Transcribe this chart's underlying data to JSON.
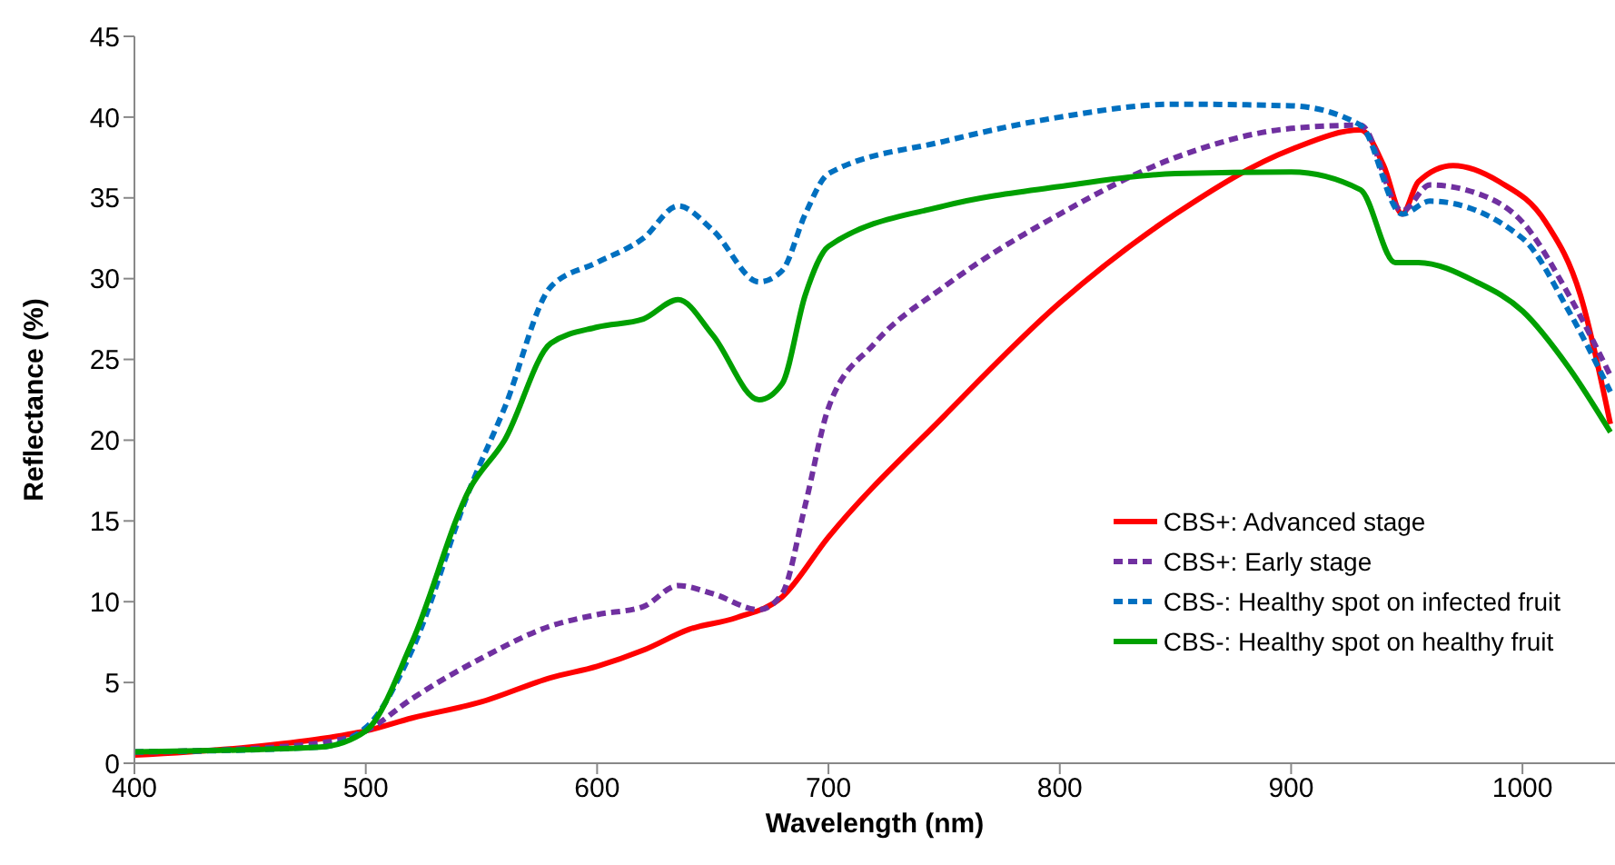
{
  "chart_data": {
    "type": "line",
    "xlabel": "Wavelength (nm)",
    "ylabel": "Reflectance (%)",
    "xlim": [
      400,
      1040
    ],
    "xticks": [
      400,
      500,
      600,
      700,
      800,
      900,
      1000
    ],
    "ylim": [
      0,
      45
    ],
    "yticks": [
      0,
      5,
      10,
      15,
      20,
      25,
      30,
      35,
      40,
      45
    ],
    "grid": false,
    "legend": "bottom right",
    "marker": "none",
    "series": [
      {
        "name": "CBS+: Advanced stage",
        "color": "#ff0000",
        "line_style": "solid",
        "x": [
          400,
          450,
          480,
          500,
          520,
          550,
          580,
          600,
          620,
          640,
          660,
          680,
          700,
          750,
          800,
          850,
          900,
          930,
          940,
          948,
          955,
          970,
          990,
          1010,
          1025,
          1038
        ],
        "values": [
          0.5,
          1,
          1.5,
          2,
          2.8,
          3.8,
          5.3,
          6,
          7,
          8.3,
          9,
          10.3,
          14,
          21.5,
          28.5,
          34,
          38,
          39.2,
          37,
          34,
          36,
          37,
          36,
          33.5,
          29,
          21
        ]
      },
      {
        "name": "CBS+: Early stage",
        "color": "#7030a0",
        "line_style": "dashed",
        "x": [
          400,
          450,
          490,
          500,
          520,
          550,
          580,
          600,
          620,
          635,
          650,
          670,
          680,
          690,
          700,
          720,
          750,
          800,
          850,
          900,
          930,
          948,
          960,
          980,
          1000,
          1020,
          1038
        ],
        "values": [
          0.7,
          0.9,
          1.5,
          2,
          4,
          6.5,
          8.5,
          9.2,
          9.7,
          11,
          10.5,
          9.5,
          10.5,
          16,
          22,
          26,
          29.5,
          34,
          37.5,
          39.3,
          39.5,
          34.2,
          35.8,
          35.3,
          33.5,
          29,
          24
        ]
      },
      {
        "name": "CBS-: Healthy spot on infected fruit",
        "color": "#0070c0",
        "line_style": "dashed",
        "x": [
          400,
          480,
          500,
          520,
          545,
          560,
          580,
          600,
          620,
          635,
          650,
          670,
          680,
          690,
          700,
          750,
          800,
          850,
          900,
          930,
          948,
          960,
          1000,
          1020,
          1038
        ],
        "values": [
          0.7,
          1,
          2.2,
          7,
          17,
          22,
          29.5,
          31,
          32.5,
          34.5,
          33,
          29.8,
          30.5,
          34,
          36.5,
          38.5,
          40,
          40.8,
          40.7,
          39.5,
          34,
          34.8,
          32.5,
          28,
          23
        ]
      },
      {
        "name": "CBS-: Healthy spot on healthy fruit",
        "color": "#00a000",
        "line_style": "solid",
        "x": [
          400,
          480,
          500,
          520,
          545,
          560,
          580,
          600,
          620,
          635,
          650,
          670,
          680,
          690,
          700,
          750,
          800,
          850,
          900,
          930,
          945,
          955,
          980,
          1000,
          1020,
          1038
        ],
        "values": [
          0.7,
          1,
          2,
          7.5,
          17,
          20,
          26,
          27,
          27.5,
          28.7,
          26.5,
          22.5,
          23.5,
          29,
          32,
          34.5,
          35.7,
          36.5,
          36.6,
          35.5,
          31,
          31,
          29.8,
          28,
          24.5,
          20.5
        ]
      }
    ]
  }
}
